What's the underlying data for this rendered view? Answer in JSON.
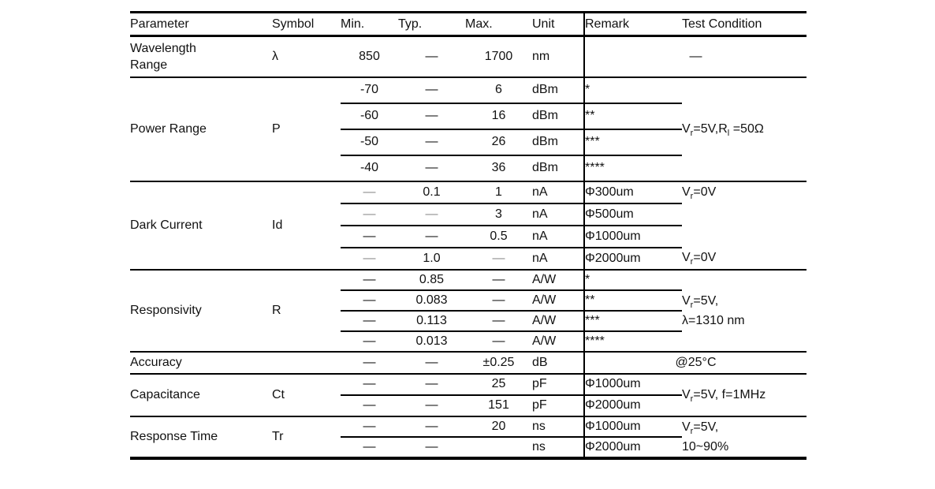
{
  "colors": {
    "background": "#ffffff",
    "text": "#111111",
    "muted_dash": "#8a8a8a",
    "border": "#000000"
  },
  "table": {
    "headers": {
      "parameter": "Parameter",
      "symbol": "Symbol",
      "min": "Min.",
      "typ": "Typ.",
      "max": "Max.",
      "unit": "Unit",
      "remark": "Remark",
      "test_condition": "Test Condition"
    },
    "sections": [
      {
        "parameter": "Wavelength Range",
        "symbol": "λ",
        "rows": [
          {
            "min": "850",
            "typ": "—",
            "max": "1700",
            "unit": "nm"
          }
        ],
        "remark": "",
        "test_condition": "—"
      },
      {
        "parameter": "Power Range",
        "symbol": "P",
        "rows": [
          {
            "min": "-70",
            "typ": "—",
            "max": "6",
            "unit": "dBm",
            "remark": "*"
          },
          {
            "min": "-60",
            "typ": "—",
            "max": "16",
            "unit": "dBm",
            "remark": "**"
          },
          {
            "min": "-50",
            "typ": "—",
            "max": "26",
            "unit": "dBm",
            "remark": "***"
          },
          {
            "min": "-40",
            "typ": "—",
            "max": "36",
            "unit": "dBm",
            "remark": "****"
          }
        ],
        "test_condition": "V_{r}=5V,R_{l} =50Ω"
      },
      {
        "parameter": "Dark Current",
        "symbol": "Id",
        "rows": [
          {
            "min": "—",
            "typ": "0.1",
            "max": "1",
            "unit": "nA",
            "remark": "Φ300um",
            "test_condition": "V_{r}=0V"
          },
          {
            "min": "—",
            "typ": "—",
            "max": "3",
            "unit": "nA",
            "remark": "Φ500um",
            "test_condition": ""
          },
          {
            "min": "—",
            "typ": "—",
            "max": "0.5",
            "unit": "nA",
            "remark": "Φ1000um",
            "test_condition": ""
          },
          {
            "min": "—",
            "typ": "1.0",
            "max": "—",
            "unit": "nA",
            "remark": "Φ2000um",
            "test_condition": "V_{r}=0V"
          }
        ]
      },
      {
        "parameter": "Responsivity",
        "symbol": "R",
        "rows": [
          {
            "min": "—",
            "typ": "0.85",
            "max": "—",
            "unit": "A/W",
            "remark": "*"
          },
          {
            "min": "—",
            "typ": "0.083",
            "max": "—",
            "unit": "A/W",
            "remark": "**"
          },
          {
            "min": "—",
            "typ": "0.113",
            "max": "—",
            "unit": "A/W",
            "remark": "***"
          },
          {
            "min": "—",
            "typ": "0.013",
            "max": "—",
            "unit": "A/W",
            "remark": "****"
          }
        ],
        "test_condition_line1": "V_{r}=5V,",
        "test_condition_line2": "λ=1310 nm"
      },
      {
        "parameter": "Accuracy",
        "symbol": "",
        "rows": [
          {
            "min": "—",
            "typ": "—",
            "max": "±0.25",
            "unit": "dB"
          }
        ],
        "remark": "",
        "test_condition": "@25°C"
      },
      {
        "parameter": "Capacitance",
        "symbol": "Ct",
        "rows": [
          {
            "min": "—",
            "typ": "—",
            "max": "25",
            "unit": "pF",
            "remark": "Φ1000um"
          },
          {
            "min": "—",
            "typ": "—",
            "max": "151",
            "unit": "pF",
            "remark": "Φ2000um"
          }
        ],
        "test_condition": "V_{r}=5V, f=1MHz"
      },
      {
        "parameter": "Response Time",
        "symbol": "Tr",
        "rows": [
          {
            "min": "—",
            "typ": "—",
            "max": "20",
            "unit": "ns",
            "remark": "Φ1000um"
          },
          {
            "min": "—",
            "typ": "—",
            "max": "",
            "unit": "ns",
            "remark": "Φ2000um"
          }
        ],
        "test_condition_line1": "V_{r}=5V,",
        "test_condition_line2": "10~90%"
      }
    ]
  }
}
